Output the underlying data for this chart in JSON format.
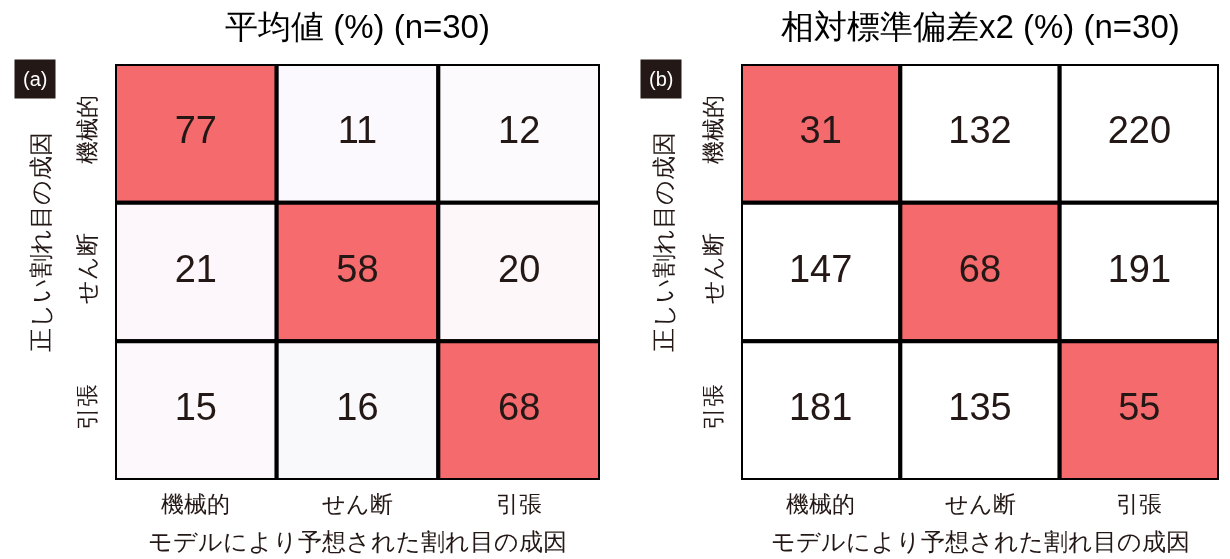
{
  "chart_data": [
    {
      "type": "heatmap",
      "title": "平均値 (%) (n=30)",
      "xlabel": "モデルにより予想された割れ目の成因",
      "ylabel": "正しい割れ目の成因",
      "categories": [
        "機械的",
        "せん断",
        "引張"
      ],
      "y_categories": [
        "機械的",
        "せん断",
        "引張"
      ],
      "cells": [
        [
          77,
          11,
          12
        ],
        [
          21,
          58,
          20
        ],
        [
          15,
          16,
          68
        ]
      ],
      "colors": [
        [
          "#f56a6d",
          "#fbf9fd",
          "#fcfafd"
        ],
        [
          "#fdf6fa",
          "#f56b6e",
          "#fdf7fa"
        ],
        [
          "#fcf8fb",
          "#f9f9fc",
          "#f56a6d"
        ]
      ],
      "data_labels": true,
      "annotations": [
        "(a)"
      ]
    },
    {
      "type": "heatmap",
      "title": "相対標準偏差x2 (%) (n=30)",
      "xlabel": "モデルにより予想された割れ目の成因",
      "ylabel": "正しい割れ目の成因",
      "categories": [
        "機械的",
        "せん断",
        "引張"
      ],
      "y_categories": [
        "機械的",
        "せん断",
        "引張"
      ],
      "cells": [
        [
          31,
          132,
          220
        ],
        [
          147,
          68,
          191
        ],
        [
          181,
          135,
          55
        ]
      ],
      "colors": [
        [
          "#f56a6d",
          "#ffffff",
          "#ffffff"
        ],
        [
          "#ffffff",
          "#f56a6d",
          "#ffffff"
        ],
        [
          "#ffffff",
          "#ffffff",
          "#f56a6d"
        ]
      ],
      "data_labels": true,
      "annotations": [
        "(b)"
      ]
    }
  ]
}
